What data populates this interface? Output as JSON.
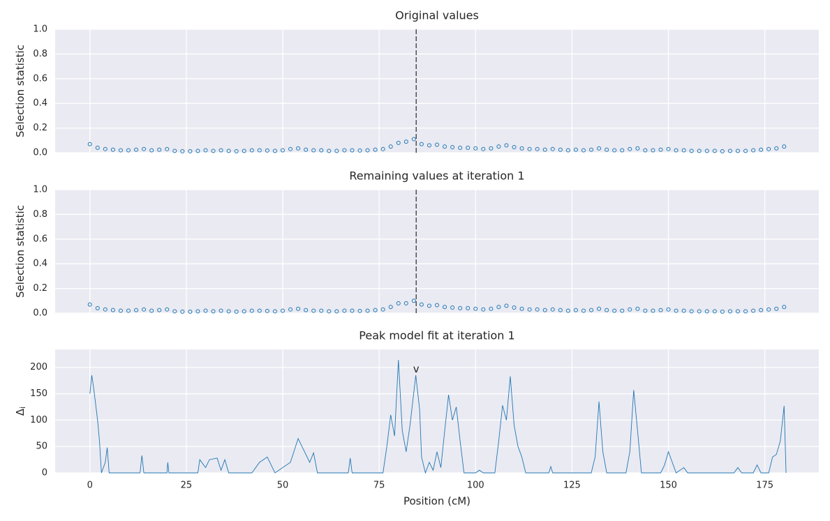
{
  "chart_data": [
    {
      "type": "scatter",
      "title": "Original values",
      "ylabel": "Selection statistic",
      "color": "#1f77b4",
      "x": [
        0,
        2,
        4,
        6,
        8,
        10,
        12,
        14,
        16,
        18,
        20,
        22,
        24,
        26,
        28,
        30,
        32,
        34,
        36,
        38,
        40,
        42,
        44,
        46,
        48,
        50,
        52,
        54,
        56,
        58,
        60,
        62,
        64,
        66,
        68,
        70,
        72,
        74,
        76,
        78,
        80,
        82,
        84,
        86,
        88,
        90,
        92,
        94,
        96,
        98,
        100,
        102,
        104,
        106,
        108,
        110,
        112,
        114,
        116,
        118,
        120,
        122,
        124,
        126,
        128,
        130,
        132,
        134,
        136,
        138,
        140,
        142,
        144,
        146,
        148,
        150,
        152,
        154,
        156,
        158,
        160,
        162,
        164,
        166,
        168,
        170,
        172,
        174,
        176,
        178,
        180
      ],
      "values": [
        0.07,
        0.04,
        0.03,
        0.025,
        0.02,
        0.02,
        0.025,
        0.03,
        0.02,
        0.025,
        0.03,
        0.015,
        0.012,
        0.012,
        0.015,
        0.02,
        0.015,
        0.02,
        0.015,
        0.012,
        0.015,
        0.02,
        0.02,
        0.018,
        0.015,
        0.02,
        0.03,
        0.035,
        0.025,
        0.02,
        0.02,
        0.015,
        0.015,
        0.02,
        0.02,
        0.018,
        0.02,
        0.025,
        0.03,
        0.05,
        0.08,
        0.09,
        0.11,
        0.07,
        0.06,
        0.065,
        0.05,
        0.045,
        0.04,
        0.04,
        0.035,
        0.03,
        0.035,
        0.05,
        0.06,
        0.045,
        0.035,
        0.03,
        0.03,
        0.025,
        0.03,
        0.025,
        0.02,
        0.025,
        0.02,
        0.025,
        0.035,
        0.025,
        0.02,
        0.02,
        0.03,
        0.035,
        0.02,
        0.02,
        0.025,
        0.03,
        0.02,
        0.02,
        0.015,
        0.015,
        0.015,
        0.015,
        0.012,
        0.015,
        0.015,
        0.015,
        0.02,
        0.025,
        0.03,
        0.035,
        0.05
      ],
      "xlim": [
        -9,
        189
      ],
      "xticks": [
        0,
        25,
        50,
        75,
        100,
        125,
        150,
        175
      ],
      "xticklabels": false,
      "ylim": [
        0,
        1
      ],
      "yticks": [
        {
          "value": 0,
          "label": "0.0"
        },
        0.2,
        0.4,
        0.6,
        0.8,
        {
          "value": 1,
          "label": "1.0"
        }
      ],
      "vline": 84.6,
      "grid": true
    },
    {
      "type": "scatter",
      "title": "Remaining values at iteration 1",
      "ylabel": "Selection statistic",
      "color": "#1f77b4",
      "x": [
        0,
        2,
        4,
        6,
        8,
        10,
        12,
        14,
        16,
        18,
        20,
        22,
        24,
        26,
        28,
        30,
        32,
        34,
        36,
        38,
        40,
        42,
        44,
        46,
        48,
        50,
        52,
        54,
        56,
        58,
        60,
        62,
        64,
        66,
        68,
        70,
        72,
        74,
        76,
        78,
        80,
        82,
        84,
        86,
        88,
        90,
        92,
        94,
        96,
        98,
        100,
        102,
        104,
        106,
        108,
        110,
        112,
        114,
        116,
        118,
        120,
        122,
        124,
        126,
        128,
        130,
        132,
        134,
        136,
        138,
        140,
        142,
        144,
        146,
        148,
        150,
        152,
        154,
        156,
        158,
        160,
        162,
        164,
        166,
        168,
        170,
        172,
        174,
        176,
        178,
        180
      ],
      "values": [
        0.07,
        0.04,
        0.03,
        0.025,
        0.02,
        0.02,
        0.025,
        0.03,
        0.02,
        0.025,
        0.03,
        0.015,
        0.012,
        0.012,
        0.015,
        0.02,
        0.015,
        0.02,
        0.015,
        0.012,
        0.015,
        0.02,
        0.02,
        0.018,
        0.015,
        0.02,
        0.03,
        0.035,
        0.025,
        0.02,
        0.02,
        0.015,
        0.015,
        0.02,
        0.02,
        0.018,
        0.02,
        0.025,
        0.03,
        0.05,
        0.08,
        0.08,
        0.1,
        0.07,
        0.06,
        0.065,
        0.05,
        0.045,
        0.04,
        0.04,
        0.035,
        0.03,
        0.035,
        0.05,
        0.06,
        0.045,
        0.035,
        0.03,
        0.03,
        0.025,
        0.03,
        0.025,
        0.02,
        0.025,
        0.02,
        0.025,
        0.035,
        0.025,
        0.02,
        0.02,
        0.03,
        0.035,
        0.02,
        0.02,
        0.025,
        0.03,
        0.02,
        0.02,
        0.015,
        0.015,
        0.015,
        0.015,
        0.012,
        0.015,
        0.015,
        0.015,
        0.02,
        0.025,
        0.03,
        0.035,
        0.05
      ],
      "xlim": [
        -9,
        189
      ],
      "xticks": [
        0,
        25,
        50,
        75,
        100,
        125,
        150,
        175
      ],
      "xticklabels": false,
      "ylim": [
        0,
        1
      ],
      "yticks": [
        {
          "value": 0,
          "label": "0.0"
        },
        0.2,
        0.4,
        0.6,
        0.8,
        {
          "value": 1,
          "label": "1.0"
        }
      ],
      "vline": 84.6,
      "grid": true
    },
    {
      "type": "line",
      "title": "Peak model fit at iteration 1",
      "ylabel": "Δ",
      "ylabel_sub": "i",
      "xlabel": "Position (cM)",
      "color": "#1f77b4",
      "x": [
        0,
        0.5,
        1,
        2,
        2.5,
        3,
        4,
        4.5,
        5,
        13,
        13.5,
        14,
        20,
        20.2,
        20.5,
        28,
        28.5,
        30,
        31,
        33,
        34,
        35,
        36,
        42,
        44,
        46,
        47,
        48,
        52,
        54,
        56,
        57,
        58,
        59,
        67,
        67.5,
        68,
        76,
        77,
        78,
        79,
        80,
        81,
        82,
        83,
        84.5,
        85.5,
        86,
        87,
        88,
        89,
        90,
        91,
        92,
        93,
        94,
        95,
        96,
        97,
        100,
        101,
        102,
        105,
        106,
        107,
        108,
        109,
        110,
        111,
        112,
        113,
        119,
        119.5,
        120,
        130,
        131,
        132,
        133,
        134,
        139,
        140,
        141,
        142,
        143,
        148,
        149,
        150,
        151,
        152,
        154,
        155,
        160,
        167,
        168,
        169,
        172,
        173,
        174,
        176,
        177,
        178,
        179,
        180,
        180.5
      ],
      "values": [
        150,
        185,
        160,
        100,
        60,
        0,
        20,
        48,
        0,
        0,
        33,
        0,
        0,
        20,
        0,
        0,
        25,
        10,
        25,
        28,
        5,
        25,
        0,
        0,
        20,
        30,
        15,
        0,
        20,
        65,
        35,
        20,
        38,
        0,
        0,
        28,
        0,
        0,
        50,
        110,
        70,
        214,
        80,
        40,
        90,
        185,
        120,
        30,
        0,
        20,
        5,
        40,
        10,
        80,
        148,
        100,
        125,
        60,
        0,
        0,
        5,
        0,
        0,
        60,
        128,
        100,
        183,
        90,
        50,
        30,
        0,
        0,
        12,
        0,
        0,
        30,
        135,
        40,
        0,
        0,
        40,
        157,
        80,
        0,
        0,
        15,
        40,
        20,
        0,
        10,
        0,
        0,
        0,
        10,
        0,
        0,
        15,
        0,
        0,
        30,
        35,
        60,
        127,
        0
      ],
      "xlim": [
        -9,
        189
      ],
      "xticks": [
        0,
        25,
        50,
        75,
        100,
        125,
        150,
        175
      ],
      "xticklabels": true,
      "ylim": [
        0,
        234
      ],
      "yticks": [
        0,
        50,
        100,
        150,
        200
      ],
      "annotations": [
        {
          "text": "v",
          "x": 84.6,
          "y": 196
        }
      ],
      "grid": true
    }
  ]
}
